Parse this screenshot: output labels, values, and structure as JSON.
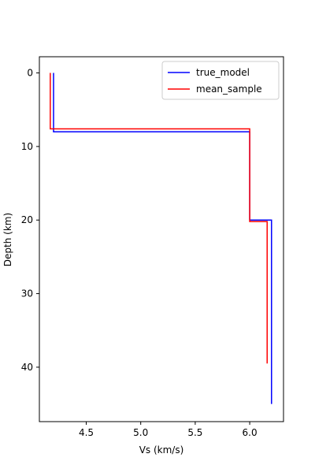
{
  "chart_data": {
    "type": "line",
    "title": "",
    "xlabel": "Vs (km/s)",
    "ylabel": "Depth (km)",
    "xlim": [
      4.07,
      6.31
    ],
    "ylim": [
      47.4,
      -2.2
    ],
    "y_inverted": true,
    "grid": false,
    "legend_position": "top-right",
    "x_ticks": [
      {
        "value": 4.5,
        "label": "4.5"
      },
      {
        "value": 5.0,
        "label": "5.0"
      },
      {
        "value": 5.5,
        "label": "5.5"
      },
      {
        "value": 6.0,
        "label": "6.0"
      }
    ],
    "y_ticks": [
      {
        "value": 0,
        "label": "0"
      },
      {
        "value": 10,
        "label": "10"
      },
      {
        "value": 20,
        "label": "20"
      },
      {
        "value": 30,
        "label": "30"
      },
      {
        "value": 40,
        "label": "40"
      }
    ],
    "series": [
      {
        "name": "true_model",
        "color": "#0000ff",
        "x": [
          4.2,
          4.2,
          6.0,
          6.0,
          6.2,
          6.2
        ],
        "y": [
          0,
          8.0,
          8.0,
          20.0,
          20.0,
          45.0
        ]
      },
      {
        "name": "mean_sample",
        "color": "#ff0000",
        "x": [
          4.17,
          4.17,
          6.0,
          6.0,
          6.16,
          6.16
        ],
        "y": [
          0,
          7.6,
          7.6,
          20.2,
          20.2,
          39.5
        ]
      }
    ]
  }
}
